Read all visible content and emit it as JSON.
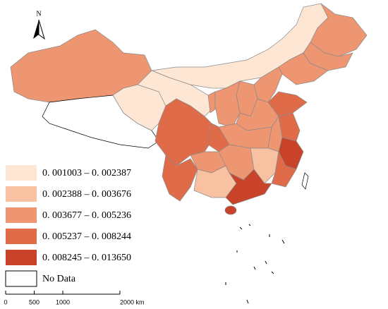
{
  "north_arrow": {
    "label": "N"
  },
  "legend": {
    "items": [
      {
        "label": "0. 001003 – 0. 002387",
        "color": "#fde6d4"
      },
      {
        "label": "0. 002388 – 0. 003676",
        "color": "#f8c1a2"
      },
      {
        "label": "0. 003677 – 0. 005236",
        "color": "#ee9572"
      },
      {
        "label": "0. 005237 – 0. 008244",
        "color": "#df6b49"
      },
      {
        "label": "0. 008245 – 0. 013650",
        "color": "#c8432a"
      },
      {
        "label": "No Data",
        "color": "#ffffff"
      }
    ]
  },
  "scale_bar": {
    "ticks": [
      0,
      500,
      1000,
      {
        "value": 2000,
        "label": "2000 km"
      }
    ]
  }
}
